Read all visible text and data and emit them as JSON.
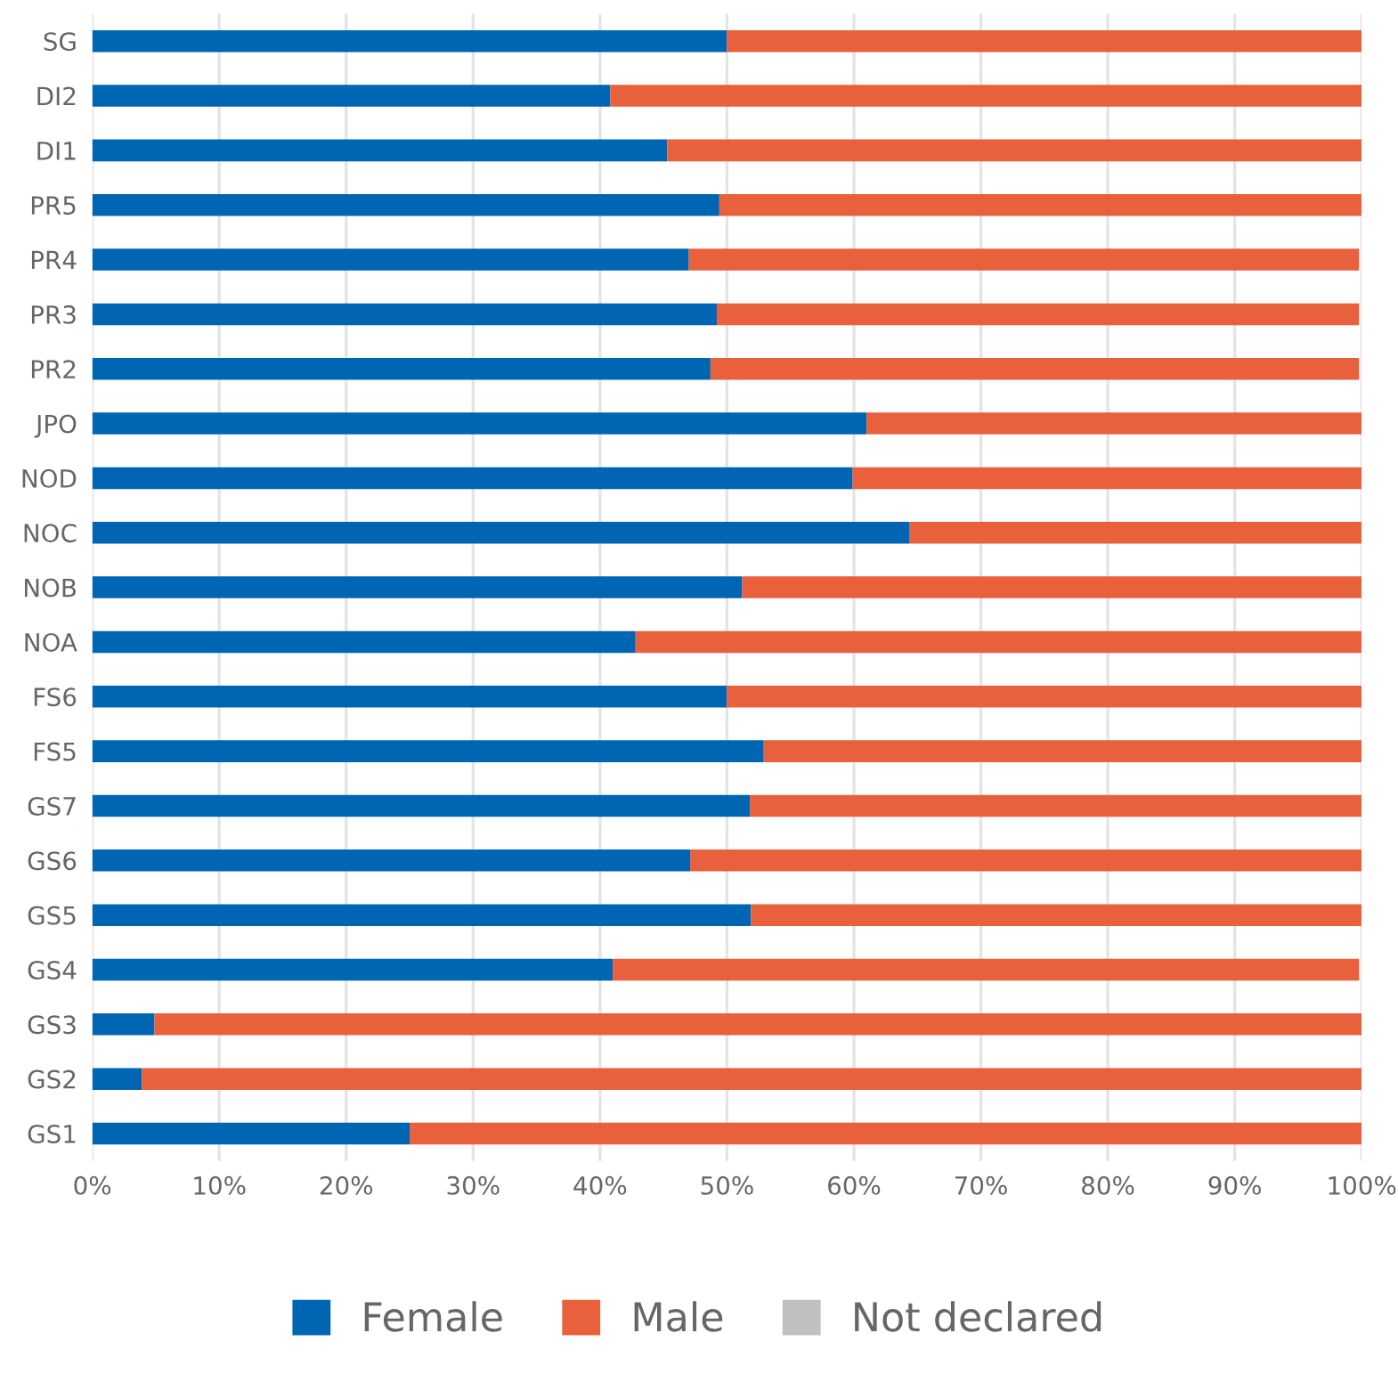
{
  "chart_data": {
    "type": "bar",
    "orientation": "horizontal",
    "stacked": true,
    "categories": [
      "SG",
      "DI2",
      "DI1",
      "PR5",
      "PR4",
      "PR3",
      "PR2",
      "JPO",
      "NOD",
      "NOC",
      "NOB",
      "NOA",
      "FS6",
      "FS5",
      "GS7",
      "GS6",
      "GS5",
      "GS4",
      "GS3",
      "GS2",
      "GS1"
    ],
    "series": [
      {
        "name": "Female",
        "color": "#0066b3",
        "values": [
          50.0,
          40.8,
          45.3,
          49.4,
          47.0,
          49.2,
          48.7,
          61.0,
          59.9,
          64.4,
          51.2,
          42.8,
          50.0,
          52.9,
          51.8,
          47.1,
          51.9,
          41.0,
          4.9,
          3.9,
          25.0
        ]
      },
      {
        "name": "Male",
        "color": "#e8603c",
        "values": [
          50.0,
          59.2,
          54.7,
          50.6,
          52.8,
          50.6,
          51.1,
          39.0,
          40.1,
          35.6,
          48.8,
          57.2,
          50.0,
          47.1,
          48.2,
          52.9,
          48.1,
          58.8,
          95.1,
          96.1,
          75.0
        ]
      },
      {
        "name": "Not declared",
        "color": "#c0c0c0",
        "values": [
          0,
          0,
          0,
          0,
          null,
          null,
          null,
          0,
          0,
          0,
          0,
          0,
          0,
          0,
          0,
          0,
          0,
          null,
          0,
          0,
          0
        ]
      }
    ],
    "xlim": [
      0,
      100
    ],
    "xticks": [
      {
        "value": 0,
        "label": "0%"
      },
      {
        "value": 10,
        "label": "10%"
      },
      {
        "value": 20,
        "label": "20%"
      },
      {
        "value": 30,
        "label": "30%"
      },
      {
        "value": 40,
        "label": "40%"
      },
      {
        "value": 50,
        "label": "50%"
      },
      {
        "value": 60,
        "label": "60%"
      },
      {
        "value": 70,
        "label": "70%"
      },
      {
        "value": 80,
        "label": "80%"
      },
      {
        "value": 90,
        "label": "90%"
      },
      {
        "value": 100,
        "label": "100%"
      }
    ],
    "grid": "x",
    "legend": "bottom"
  }
}
